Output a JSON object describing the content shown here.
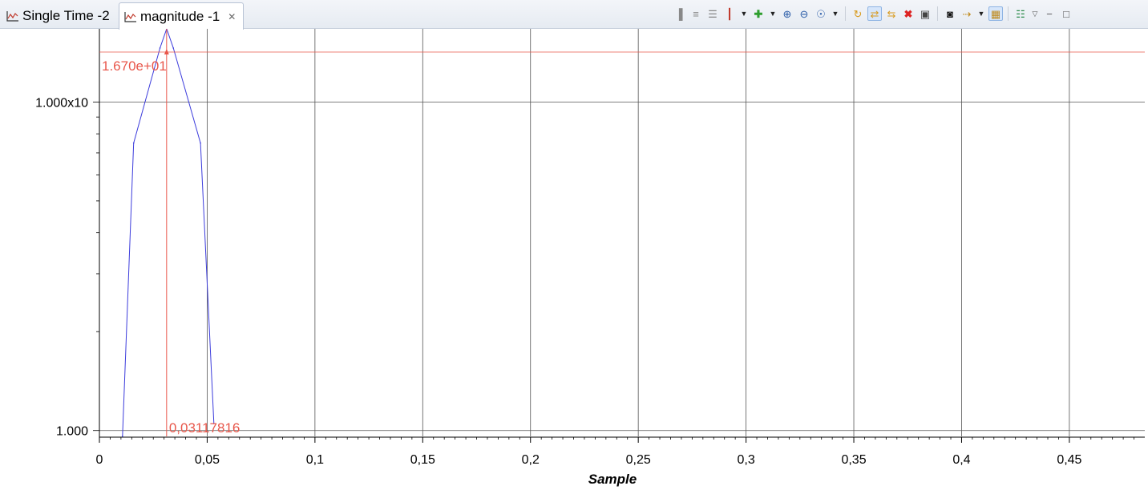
{
  "tabs": [
    {
      "label": "Single Time -2",
      "icon": "chart-line-icon",
      "active": false
    },
    {
      "label": "magnitude -1",
      "icon": "chart-line-icon",
      "active": true,
      "close_icon": "close-icon"
    }
  ],
  "toolbar": {
    "icons": [
      "align-left-icon",
      "align-center-icon",
      "align-right-icon",
      "markers-icon",
      "dropdown-arrow-icon",
      "add-icon",
      "dropdown-arrow-icon",
      "zoom-in-icon",
      "zoom-out-icon",
      "zoom-fit-icon",
      "dropdown-arrow-icon",
      "refresh-icon",
      "sync-icon",
      "sync-all-icon",
      "delete-icon",
      "export-icon",
      "binoculars-icon",
      "step-icon",
      "dropdown-arrow-icon",
      "lock-icon",
      "list-icon",
      "view-menu-icon",
      "minimize-icon",
      "maximize-icon"
    ]
  },
  "chart_data": {
    "type": "line",
    "xlabel": "Sample",
    "ylabel": "",
    "yscale": "log",
    "x_ticks": [
      "0",
      "0,05",
      "0,1",
      "0,15",
      "0,2",
      "0,25",
      "0,3",
      "0,35",
      "0,4",
      "0,45"
    ],
    "x_tick_values": [
      0,
      0.05,
      0.1,
      0.15,
      0.2,
      0.25,
      0.3,
      0.35,
      0.4,
      0.45
    ],
    "y_ticks": [
      "1.000",
      "1.000x10"
    ],
    "y_tick_values": [
      1,
      10
    ],
    "xlim": [
      0,
      0.485
    ],
    "ylim": [
      0.96,
      16.7
    ],
    "grid": true,
    "series": [
      {
        "color": "#3c3cdc",
        "x": [
          0.0107,
          0.0159,
          0.0281,
          0.0312,
          0.0343,
          0.0469,
          0.0531
        ],
        "y": [
          0.96,
          7.5,
          14.6,
          16.7,
          14.6,
          7.5,
          1.05
        ]
      }
    ],
    "markers": {
      "color": "#e8564a",
      "x_value": 0.03117816,
      "x_label": "0,03117816",
      "y_value": 16.7,
      "y_label": "1.670e+01"
    }
  }
}
